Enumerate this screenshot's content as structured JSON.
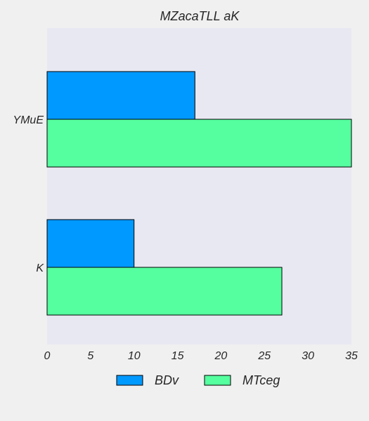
{
  "chart_data": {
    "type": "bar",
    "orientation": "horizontal",
    "title": "MZacaTLL  aK",
    "xlabel": "",
    "ylabel": "",
    "categories": [
      "YMuE",
      "K"
    ],
    "series": [
      {
        "name": "BDv",
        "values": [
          17,
          10
        ],
        "color": "#0099ff"
      },
      {
        "name": "MTceg",
        "values": [
          35,
          27
        ],
        "color": "#55ff9f"
      }
    ],
    "xlim": [
      0,
      35
    ],
    "xticks": [
      0,
      5,
      10,
      15,
      20,
      25,
      30,
      35
    ],
    "legend_position": "bottom-center",
    "grid": false,
    "plot_background": "#e8e8f2",
    "page_background": "#f0f0f0"
  }
}
